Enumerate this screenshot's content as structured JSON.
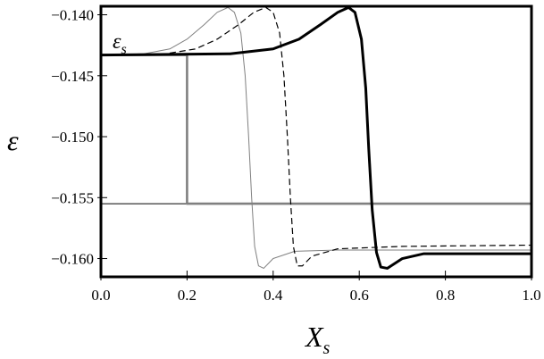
{
  "chart_data": {
    "type": "line",
    "xlabel": "X",
    "xlabel_sub": "s",
    "ylabel": "ε",
    "annotation": {
      "text": "ε",
      "sub": "s"
    },
    "xlim": [
      0.0,
      1.0
    ],
    "ylim": [
      -0.1615,
      -0.1393
    ],
    "x_ticks": [
      0.0,
      0.2,
      0.4,
      0.6,
      0.8,
      1.0
    ],
    "x_tick_labels": [
      "0.0",
      "0.2",
      "0.4",
      "0.6",
      "0.8",
      "1.0"
    ],
    "y_ticks": [
      -0.14,
      -0.145,
      -0.15,
      -0.155,
      -0.16
    ],
    "y_tick_labels": [
      "−0.140",
      "−0.145",
      "−0.150",
      "−0.155",
      "−0.160"
    ],
    "grid": false,
    "legend": "none",
    "reference_line": {
      "y": -0.1555,
      "color": "#000000"
    },
    "series": [
      {
        "style": "step",
        "color": "#808080",
        "points": [
          [
            0.0,
            -0.1433
          ],
          [
            0.2,
            -0.1433
          ],
          [
            0.2,
            -0.1555
          ],
          [
            1.0,
            -0.1555
          ]
        ]
      },
      {
        "style": "thin",
        "color": "#808080",
        "points": [
          [
            0.0,
            -0.1433
          ],
          [
            0.1,
            -0.1432
          ],
          [
            0.16,
            -0.1428
          ],
          [
            0.2,
            -0.142
          ],
          [
            0.24,
            -0.1408
          ],
          [
            0.27,
            -0.1398
          ],
          [
            0.295,
            -0.1394
          ],
          [
            0.31,
            -0.1398
          ],
          [
            0.325,
            -0.1415
          ],
          [
            0.335,
            -0.145
          ],
          [
            0.343,
            -0.15
          ],
          [
            0.35,
            -0.155
          ],
          [
            0.357,
            -0.159
          ],
          [
            0.366,
            -0.1606
          ],
          [
            0.378,
            -0.1608
          ],
          [
            0.4,
            -0.16
          ],
          [
            0.45,
            -0.1594
          ],
          [
            0.55,
            -0.1593
          ],
          [
            1.0,
            -0.1593
          ]
        ]
      },
      {
        "style": "dashed",
        "color": "#000000",
        "points": [
          [
            0.0,
            -0.1433
          ],
          [
            0.15,
            -0.1432
          ],
          [
            0.22,
            -0.1428
          ],
          [
            0.27,
            -0.142
          ],
          [
            0.32,
            -0.1408
          ],
          [
            0.355,
            -0.1398
          ],
          [
            0.383,
            -0.1394
          ],
          [
            0.4,
            -0.1398
          ],
          [
            0.415,
            -0.1415
          ],
          [
            0.425,
            -0.145
          ],
          [
            0.433,
            -0.15
          ],
          [
            0.44,
            -0.155
          ],
          [
            0.447,
            -0.159
          ],
          [
            0.456,
            -0.1606
          ],
          [
            0.468,
            -0.1606
          ],
          [
            0.49,
            -0.1598
          ],
          [
            0.55,
            -0.1592
          ],
          [
            0.7,
            -0.159
          ],
          [
            1.0,
            -0.1589
          ]
        ]
      },
      {
        "style": "thick",
        "color": "#000000",
        "points": [
          [
            0.0,
            -0.1433
          ],
          [
            0.3,
            -0.1432
          ],
          [
            0.4,
            -0.1428
          ],
          [
            0.46,
            -0.142
          ],
          [
            0.51,
            -0.1408
          ],
          [
            0.55,
            -0.1398
          ],
          [
            0.575,
            -0.1394
          ],
          [
            0.59,
            -0.1398
          ],
          [
            0.605,
            -0.142
          ],
          [
            0.615,
            -0.146
          ],
          [
            0.622,
            -0.151
          ],
          [
            0.63,
            -0.156
          ],
          [
            0.64,
            -0.1595
          ],
          [
            0.65,
            -0.1607
          ],
          [
            0.665,
            -0.1608
          ],
          [
            0.7,
            -0.16
          ],
          [
            0.75,
            -0.1596
          ],
          [
            0.85,
            -0.1596
          ],
          [
            1.0,
            -0.1596
          ]
        ]
      }
    ]
  }
}
